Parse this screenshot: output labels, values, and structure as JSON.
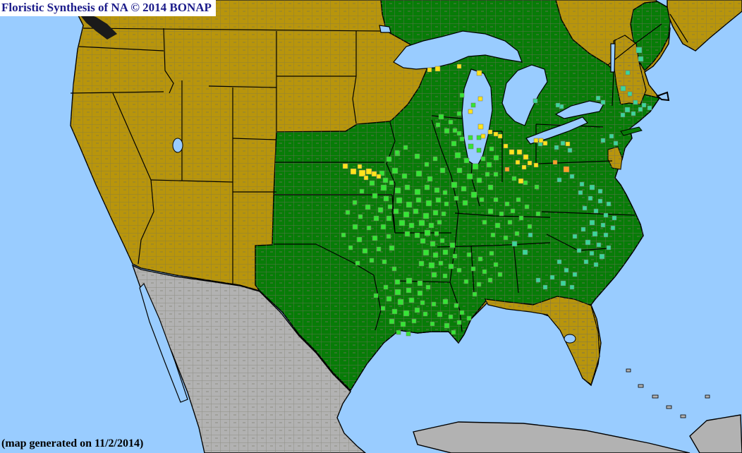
{
  "header": {
    "title": "Floristic Synthesis of NA © 2014 BONAP"
  },
  "footer": {
    "caption": "(map generated on 11/2/2014)"
  },
  "map": {
    "colors": {
      "ocean": "#99CCFF",
      "inland_water": "#99CCFF",
      "outside_flora_gray": "#B2B2B2",
      "state_absent_gold": "#B8950C",
      "state_present_dark_green": "#077C07",
      "county_present_bright_green": "#35E535",
      "county_rare_yellow": "#FFE41C",
      "county_exotic_teal": "#3BD69B",
      "county_noxious_orange": "#FFA028",
      "county_line": "#70705E",
      "state_border": "#000000",
      "island_dark": "#1A1A1A",
      "title_color": "#1B1B8A",
      "title_bg": "#FFFFFF",
      "footer_color": "#000000"
    },
    "legend_semantics": {
      "state_absent_gold": "species not present in state/province",
      "state_present_dark_green": "species present in state",
      "county_present_bright_green": "species present in county",
      "county_rare_yellow": "species present and rare in county",
      "county_exotic_teal": "species present in county (adventive/exotic)",
      "county_noxious_orange": "species noxious in county",
      "outside_flora_gray": "outside floristic area (Mexico / Caribbean)"
    },
    "markers": {
      "county_present": [
        [
          560,
          214,
          7
        ],
        [
          548,
          222,
          7
        ],
        [
          572,
          206,
          6
        ],
        [
          588,
          218,
          7
        ],
        [
          602,
          230,
          6
        ],
        [
          556,
          238,
          8
        ],
        [
          570,
          246,
          7
        ],
        [
          590,
          242,
          8
        ],
        [
          606,
          250,
          7
        ],
        [
          614,
          222,
          6
        ],
        [
          624,
          238,
          7
        ],
        [
          543,
          252,
          7
        ],
        [
          640,
          200,
          7
        ],
        [
          652,
          194,
          6
        ],
        [
          664,
          204,
          7
        ],
        [
          676,
          210,
          6
        ],
        [
          645,
          216,
          8
        ],
        [
          658,
          224,
          7
        ],
        [
          670,
          232,
          8
        ],
        [
          682,
          222,
          6
        ],
        [
          648,
          238,
          7
        ],
        [
          662,
          246,
          8
        ],
        [
          676,
          252,
          7
        ],
        [
          688,
          244,
          6
        ],
        [
          640,
          258,
          8
        ],
        [
          654,
          264,
          7
        ],
        [
          668,
          272,
          8
        ],
        [
          680,
          280,
          6
        ],
        [
          692,
          262,
          7
        ],
        [
          656,
          284,
          7
        ],
        [
          644,
          278,
          6
        ],
        [
          690,
          230,
          7
        ],
        [
          700,
          244,
          6
        ],
        [
          694,
          208,
          6
        ],
        [
          700,
          220,
          7
        ],
        [
          622,
          162,
          7
        ],
        [
          636,
          170,
          6
        ],
        [
          648,
          158,
          6
        ],
        [
          630,
          182,
          7
        ],
        [
          618,
          174,
          6
        ],
        [
          642,
          182,
          6
        ],
        [
          648,
          186,
          6
        ],
        [
          664,
          192,
          6
        ],
        [
          676,
          192,
          6
        ],
        [
          652,
          132,
          6
        ],
        [
          668,
          146,
          6
        ],
        [
          560,
          266,
          8
        ],
        [
          574,
          262,
          7
        ],
        [
          588,
          268,
          8
        ],
        [
          602,
          262,
          7
        ],
        [
          616,
          266,
          7
        ],
        [
          628,
          270,
          6
        ],
        [
          562,
          280,
          8
        ],
        [
          576,
          286,
          8
        ],
        [
          590,
          280,
          7
        ],
        [
          604,
          284,
          8
        ],
        [
          618,
          280,
          7
        ],
        [
          630,
          286,
          6
        ],
        [
          558,
          296,
          7
        ],
        [
          572,
          300,
          8
        ],
        [
          586,
          296,
          7
        ],
        [
          600,
          302,
          8
        ],
        [
          614,
          298,
          7
        ],
        [
          626,
          300,
          6
        ],
        [
          566,
          312,
          8
        ],
        [
          580,
          316,
          7
        ],
        [
          594,
          312,
          8
        ],
        [
          608,
          316,
          7
        ],
        [
          620,
          312,
          6
        ],
        [
          574,
          328,
          7
        ],
        [
          588,
          330,
          7
        ],
        [
          602,
          326,
          8
        ],
        [
          616,
          328,
          6
        ],
        [
          538,
          242,
          7
        ],
        [
          524,
          256,
          7
        ],
        [
          540,
          262,
          8
        ],
        [
          552,
          256,
          6
        ],
        [
          510,
          268,
          6
        ],
        [
          528,
          274,
          7
        ],
        [
          544,
          278,
          7
        ],
        [
          500,
          284,
          6
        ],
        [
          518,
          290,
          7
        ],
        [
          536,
          294,
          7
        ],
        [
          550,
          290,
          6
        ],
        [
          490,
          298,
          6
        ],
        [
          508,
          304,
          6
        ],
        [
          530,
          306,
          7
        ],
        [
          548,
          306,
          7
        ],
        [
          500,
          318,
          7
        ],
        [
          520,
          320,
          6
        ],
        [
          540,
          318,
          7
        ],
        [
          484,
          330,
          6
        ],
        [
          506,
          336,
          7
        ],
        [
          528,
          334,
          7
        ],
        [
          548,
          332,
          6
        ],
        [
          494,
          348,
          6
        ],
        [
          514,
          352,
          7
        ],
        [
          534,
          350,
          6
        ],
        [
          552,
          348,
          7
        ],
        [
          524,
          366,
          6
        ],
        [
          542,
          368,
          6
        ],
        [
          504,
          370,
          6
        ],
        [
          556,
          378,
          6
        ],
        [
          596,
          338,
          7
        ],
        [
          610,
          342,
          7
        ],
        [
          624,
          338,
          6
        ],
        [
          638,
          344,
          7
        ],
        [
          600,
          354,
          8
        ],
        [
          614,
          358,
          7
        ],
        [
          628,
          354,
          7
        ],
        [
          642,
          360,
          6
        ],
        [
          594,
          370,
          7
        ],
        [
          608,
          372,
          8
        ],
        [
          622,
          370,
          6
        ],
        [
          636,
          374,
          7
        ],
        [
          648,
          380,
          6
        ],
        [
          612,
          386,
          7
        ],
        [
          628,
          388,
          6
        ],
        [
          560,
          396,
          7
        ],
        [
          576,
          394,
          8
        ],
        [
          592,
          398,
          7
        ],
        [
          544,
          404,
          6
        ],
        [
          560,
          410,
          8
        ],
        [
          576,
          408,
          7
        ],
        [
          592,
          412,
          7
        ],
        [
          604,
          404,
          6
        ],
        [
          530,
          416,
          6
        ],
        [
          548,
          420,
          7
        ],
        [
          564,
          424,
          8
        ],
        [
          580,
          422,
          7
        ],
        [
          596,
          426,
          6
        ],
        [
          540,
          434,
          6
        ],
        [
          556,
          438,
          7
        ],
        [
          572,
          440,
          8
        ],
        [
          588,
          436,
          7
        ],
        [
          600,
          442,
          6
        ],
        [
          552,
          452,
          7
        ],
        [
          568,
          456,
          7
        ],
        [
          584,
          452,
          6
        ],
        [
          562,
          468,
          6
        ],
        [
          576,
          470,
          6
        ],
        [
          612,
          428,
          6
        ],
        [
          628,
          424,
          7
        ],
        [
          644,
          430,
          6
        ],
        [
          620,
          442,
          7
        ],
        [
          636,
          446,
          6
        ],
        [
          652,
          440,
          6
        ],
        [
          610,
          456,
          6
        ],
        [
          630,
          458,
          7
        ],
        [
          648,
          454,
          6
        ],
        [
          662,
          448,
          6
        ],
        [
          640,
          468,
          6
        ],
        [
          700,
          280,
          6
        ],
        [
          716,
          286,
          6
        ],
        [
          732,
          280,
          6
        ],
        [
          692,
          296,
          7
        ],
        [
          708,
          300,
          6
        ],
        [
          724,
          296,
          6
        ],
        [
          744,
          290,
          6
        ],
        [
          684,
          312,
          6
        ],
        [
          702,
          316,
          7
        ],
        [
          720,
          312,
          6
        ],
        [
          736,
          306,
          6
        ],
        [
          696,
          330,
          6
        ],
        [
          714,
          334,
          6
        ],
        [
          730,
          328,
          6
        ],
        [
          748,
          318,
          6
        ],
        [
          760,
          300,
          6
        ],
        [
          662,
          358,
          6
        ],
        [
          678,
          364,
          6
        ],
        [
          694,
          356,
          6
        ],
        [
          668,
          378,
          6
        ],
        [
          684,
          382,
          6
        ],
        [
          700,
          372,
          6
        ],
        [
          658,
          396,
          6
        ],
        [
          676,
          400,
          6
        ],
        [
          692,
          394,
          6
        ],
        [
          706,
          386,
          6
        ],
        [
          670,
          414,
          6
        ],
        [
          726,
          250,
          6
        ],
        [
          742,
          256,
          6
        ],
        [
          758,
          262,
          6
        ],
        [
          560,
          213,
          6
        ]
      ],
      "county_rare": [
        [
          486,
          232,
          7
        ],
        [
          497,
          239,
          8
        ],
        [
          507,
          233,
          6
        ],
        [
          509,
          241,
          9
        ],
        [
          519,
          239,
          8
        ],
        [
          527,
          243,
          7
        ],
        [
          534,
          247,
          6
        ],
        [
          516,
          249,
          6
        ],
        [
          706,
          190,
          6
        ],
        [
          714,
          204,
          6
        ],
        [
          722,
          212,
          7
        ],
        [
          733,
          212,
          7
        ],
        [
          742,
          219,
          7
        ],
        [
          731,
          227,
          6
        ],
        [
          748,
          228,
          6
        ],
        [
          757,
          231,
          6
        ],
        [
          764,
          196,
          6
        ],
        [
          740,
          234,
          6
        ],
        [
          735,
          253,
          7
        ],
        [
          617,
          94,
          7
        ],
        [
          606,
          96,
          6
        ],
        [
          648,
          91,
          6
        ],
        [
          676,
          100,
          7
        ],
        [
          678,
          137,
          6
        ],
        [
          664,
          155,
          6
        ],
        [
          678,
          176,
          7
        ],
        [
          692,
          184,
          6
        ],
        [
          700,
          187,
          6
        ],
        [
          682,
          190,
          6
        ],
        [
          757,
          196,
          6
        ],
        [
          770,
          200,
          6
        ],
        [
          802,
          201,
          6
        ]
      ],
      "county_exotic": [
        [
          902,
          67,
          8
        ],
        [
          905,
          80,
          7
        ],
        [
          887,
          100,
          6
        ],
        [
          880,
          122,
          7
        ],
        [
          890,
          130,
          6
        ],
        [
          898,
          142,
          6
        ],
        [
          910,
          146,
          6
        ],
        [
          886,
          152,
          7
        ],
        [
          895,
          158,
          6
        ],
        [
          905,
          152,
          6
        ],
        [
          918,
          150,
          6
        ],
        [
          880,
          160,
          6
        ],
        [
          845,
          136,
          6
        ],
        [
          852,
          142,
          6
        ],
        [
          793,
          148,
          6
        ],
        [
          864,
          190,
          6
        ],
        [
          870,
          200,
          6
        ],
        [
          852,
          196,
          6
        ],
        [
          795,
          200,
          6
        ],
        [
          763,
          201,
          6
        ],
        [
          786,
          206,
          6
        ],
        [
          805,
          210,
          6
        ],
        [
          808,
          247,
          6
        ],
        [
          790,
          252,
          6
        ],
        [
          822,
          258,
          6
        ],
        [
          836,
          262,
          7
        ],
        [
          848,
          268,
          6
        ],
        [
          820,
          270,
          6
        ],
        [
          834,
          278,
          6
        ],
        [
          848,
          282,
          6
        ],
        [
          860,
          286,
          6
        ],
        [
          826,
          292,
          6
        ],
        [
          842,
          296,
          6
        ],
        [
          856,
          302,
          6
        ],
        [
          868,
          306,
          6
        ],
        [
          836,
          312,
          7
        ],
        [
          852,
          316,
          6
        ],
        [
          866,
          320,
          6
        ],
        [
          824,
          322,
          6
        ],
        [
          840,
          328,
          7
        ],
        [
          856,
          330,
          6
        ],
        [
          812,
          332,
          6
        ],
        [
          830,
          340,
          7
        ],
        [
          846,
          344,
          6
        ],
        [
          860,
          348,
          6
        ],
        [
          818,
          352,
          6
        ],
        [
          836,
          356,
          6
        ],
        [
          850,
          360,
          7
        ],
        [
          828,
          368,
          6
        ],
        [
          842,
          372,
          6
        ],
        [
          726,
          342,
          7
        ],
        [
          741,
          354,
          7
        ],
        [
          749,
          330,
          6
        ],
        [
          790,
          368,
          6
        ],
        [
          800,
          380,
          6
        ],
        [
          812,
          386,
          6
        ],
        [
          780,
          390,
          6
        ],
        [
          795,
          398,
          7
        ],
        [
          808,
          404,
          6
        ],
        [
          770,
          404,
          6
        ],
        [
          760,
          394,
          6
        ],
        [
          788,
          146,
          6
        ],
        [
          756,
          140,
          6
        ]
      ],
      "county_noxious": [
        [
          784,
          227,
          6
        ],
        [
          799,
          236,
          8
        ],
        [
          716,
          237,
          6
        ]
      ]
    }
  }
}
